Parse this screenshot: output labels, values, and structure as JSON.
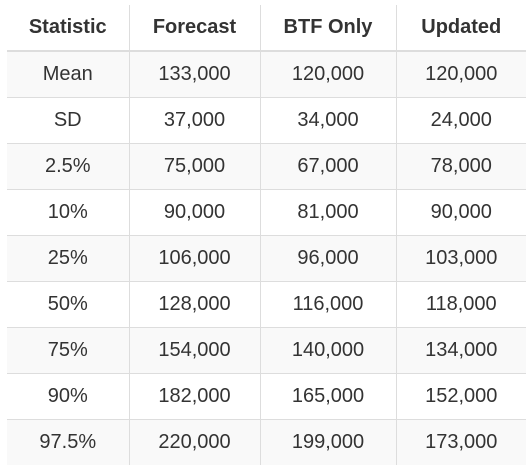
{
  "table": {
    "headers": [
      "Statistic",
      "Forecast",
      "BTF Only",
      "Updated"
    ],
    "rows": [
      [
        "Mean",
        "133,000",
        "120,000",
        "120,000"
      ],
      [
        "SD",
        "37,000",
        "34,000",
        "24,000"
      ],
      [
        "2.5%",
        "75,000",
        "67,000",
        "78,000"
      ],
      [
        "10%",
        "90,000",
        "81,000",
        "90,000"
      ],
      [
        "25%",
        "106,000",
        "96,000",
        "103,000"
      ],
      [
        "50%",
        "128,000",
        "116,000",
        "118,000"
      ],
      [
        "75%",
        "154,000",
        "140,000",
        "134,000"
      ],
      [
        "90%",
        "182,000",
        "165,000",
        "152,000"
      ],
      [
        "97.5%",
        "220,000",
        "199,000",
        "173,000"
      ]
    ]
  },
  "colors": {
    "text": "#333333",
    "border": "#dddddd",
    "stripe": "#f9f9f9",
    "background": "#ffffff"
  }
}
